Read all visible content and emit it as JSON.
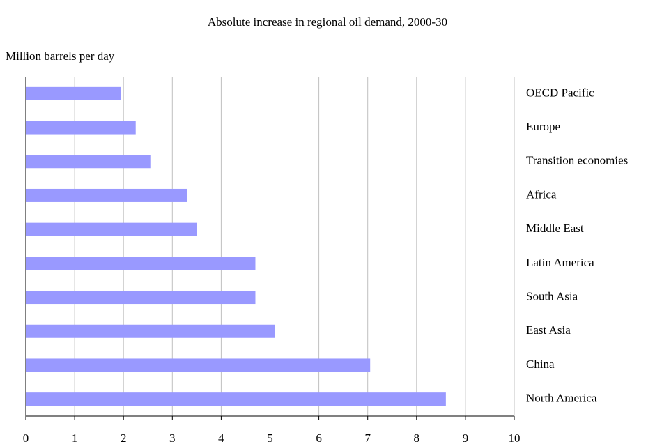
{
  "chart_data": {
    "type": "barh",
    "title": "Absolute increase in regional oil demand, 2000-30",
    "y_label": "Million barrels per day",
    "categories": [
      "OECD Pacific",
      "Europe",
      "Transition economies",
      "Africa",
      "Middle East",
      "Latin America",
      "South Asia",
      "East Asia",
      "China",
      "North America"
    ],
    "values": [
      1.95,
      2.25,
      2.55,
      3.3,
      3.5,
      4.7,
      4.7,
      5.1,
      7.05,
      8.6
    ],
    "color": "#9999ff",
    "xlim": [
      0,
      10
    ],
    "xticks": [
      0,
      1,
      2,
      3,
      4,
      5,
      6,
      7,
      8,
      9,
      10
    ],
    "grid": true
  }
}
